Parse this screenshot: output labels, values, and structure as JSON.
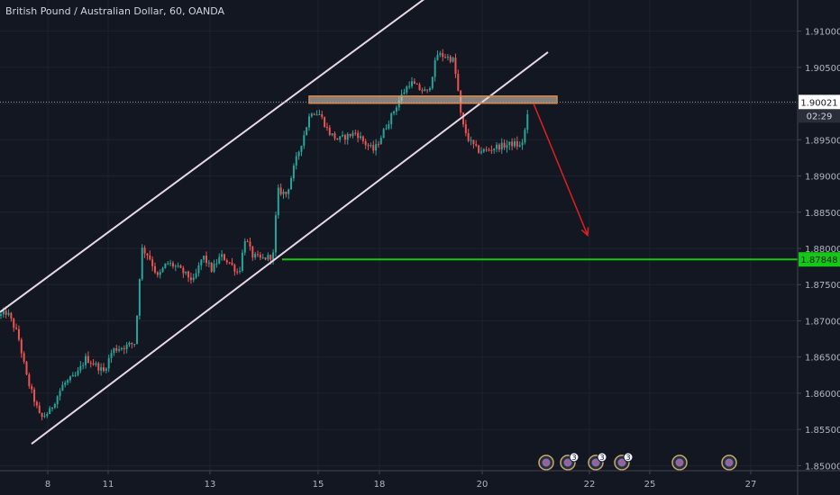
{
  "chart_data": {
    "type": "candlestick",
    "title": "British Pound / Australian Dollar, 60, OANDA",
    "price_axis": {
      "range": [
        1.8493,
        1.9143
      ],
      "ticks": [
        "1.91000",
        "1.90500",
        "1.90000",
        "1.89500",
        "1.89000",
        "1.88500",
        "1.88000",
        "1.87500",
        "1.87000",
        "1.86500",
        "1.86000",
        "1.85500",
        "1.85000"
      ]
    },
    "time_axis": {
      "labels": [
        {
          "label": "8",
          "slot": 53
        },
        {
          "label": "11",
          "slot": 120
        },
        {
          "label": "13",
          "slot": 233
        },
        {
          "label": "15",
          "slot": 353
        },
        {
          "label": "18",
          "slot": 421
        },
        {
          "label": "20",
          "slot": 535
        },
        {
          "label": "22",
          "slot": 654
        },
        {
          "label": "25",
          "slot": 721
        },
        {
          "label": "27",
          "slot": 833
        }
      ]
    },
    "current_price": {
      "value": "1.90021",
      "countdown": "02:29",
      "price": 1.90021
    },
    "target_level": {
      "label": "1.87848",
      "price": 1.87848
    },
    "key_path": [
      [
        0,
        1.8707
      ],
      [
        8,
        1.8712
      ],
      [
        20,
        1.868
      ],
      [
        30,
        1.862
      ],
      [
        45,
        1.8565
      ],
      [
        55,
        1.8575
      ],
      [
        70,
        1.8612
      ],
      [
        85,
        1.8625
      ],
      [
        95,
        1.8648
      ],
      [
        105,
        1.864
      ],
      [
        115,
        1.863
      ],
      [
        125,
        1.866
      ],
      [
        140,
        1.8665
      ],
      [
        150,
        1.867
      ],
      [
        157,
        1.88
      ],
      [
        165,
        1.879
      ],
      [
        175,
        1.876
      ],
      [
        185,
        1.878
      ],
      [
        195,
        1.8775
      ],
      [
        205,
        1.8765
      ],
      [
        215,
        1.8755
      ],
      [
        225,
        1.879
      ],
      [
        235,
        1.877
      ],
      [
        245,
        1.879
      ],
      [
        255,
        1.878
      ],
      [
        265,
        1.8765
      ],
      [
        272,
        1.8815
      ],
      [
        280,
        1.879
      ],
      [
        290,
        1.8785
      ],
      [
        303,
        1.879
      ],
      [
        308,
        1.888
      ],
      [
        318,
        1.8875
      ],
      [
        328,
        1.892
      ],
      [
        338,
        1.896
      ],
      [
        345,
        1.899
      ],
      [
        355,
        1.8985
      ],
      [
        365,
        1.896
      ],
      [
        375,
        1.895
      ],
      [
        385,
        1.8955
      ],
      [
        395,
        1.896
      ],
      [
        405,
        1.8945
      ],
      [
        415,
        1.8935
      ],
      [
        425,
        1.896
      ],
      [
        435,
        1.8985
      ],
      [
        445,
        1.901
      ],
      [
        455,
        1.903
      ],
      [
        465,
        1.902
      ],
      [
        475,
        1.9015
      ],
      [
        485,
        1.9068
      ],
      [
        495,
        1.9065
      ],
      [
        503,
        1.906
      ],
      [
        508,
        1.902
      ],
      [
        512,
        1.8975
      ],
      [
        520,
        1.895
      ],
      [
        530,
        1.8935
      ],
      [
        540,
        1.8935
      ],
      [
        550,
        1.894
      ],
      [
        560,
        1.8942
      ],
      [
        570,
        1.8945
      ],
      [
        578,
        1.894
      ],
      [
        582,
        1.896
      ],
      [
        588,
        1.9
      ]
    ],
    "channel": {
      "upper": [
        [
          0,
          1.8712
        ],
        [
          490,
          1.9162
        ]
      ],
      "lower": [
        [
          35,
          1.853
        ],
        [
          608,
          1.9071
        ]
      ]
    },
    "resistance_zone": {
      "x": [
        343,
        618
      ],
      "price": [
        1.90103,
        1.90004
      ]
    },
    "arrow": {
      "from": [
        592,
        1.9
      ],
      "to": [
        652,
        1.8818
      ]
    },
    "event_markers": [
      {
        "slot": 606,
        "badge": ""
      },
      {
        "slot": 630,
        "badge": "3"
      },
      {
        "slot": 661,
        "badge": "3"
      },
      {
        "slot": 690,
        "badge": "3"
      },
      {
        "slot": 754,
        "badge": ""
      },
      {
        "slot": 809,
        "badge": ""
      }
    ],
    "colors": {
      "background": "#131722",
      "up": "#26a69a",
      "down": "#ef5350",
      "channel": "#e8d8e6",
      "zone_fill": "#e7d2c1",
      "zone_stroke": "#d48a4e",
      "arrow": "#e02020",
      "target": "#14c914",
      "current": "#ffffff",
      "axis_text": "#b2b5be"
    }
  }
}
